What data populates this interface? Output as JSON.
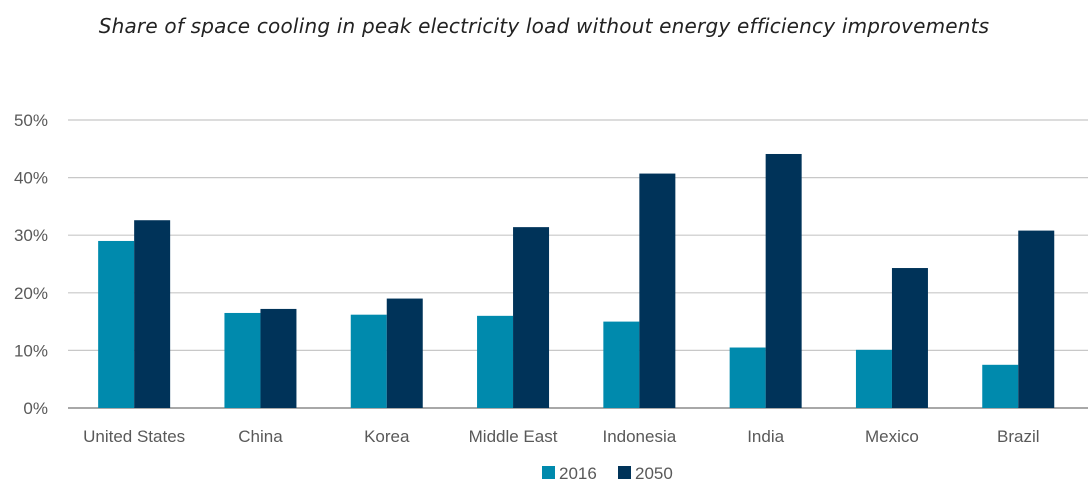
{
  "chart_data": {
    "type": "bar",
    "title": "Share of space cooling in peak electricity load without energy efficiency improvements",
    "xlabel": "",
    "ylabel": "",
    "categories": [
      "United States",
      "China",
      "Korea",
      "Middle East",
      "Indonesia",
      "India",
      "Mexico",
      "Brazil"
    ],
    "series": [
      {
        "name": "2016",
        "color": "#008aad",
        "values": [
          29,
          16.5,
          16.2,
          16,
          15,
          10.5,
          10.1,
          7.5
        ]
      },
      {
        "name": "2050",
        "color": "#003359",
        "values": [
          32.6,
          17.2,
          19,
          31.4,
          40.7,
          44.1,
          24.3,
          30.8
        ]
      }
    ],
    "ylim": [
      0,
      50
    ],
    "yticks": [
      0,
      10,
      20,
      30,
      40,
      50
    ],
    "ytick_labels": [
      "0%",
      "10%",
      "20%",
      "30%",
      "40%",
      "50%"
    ],
    "grid": true,
    "legend_position": "bottom-center"
  }
}
